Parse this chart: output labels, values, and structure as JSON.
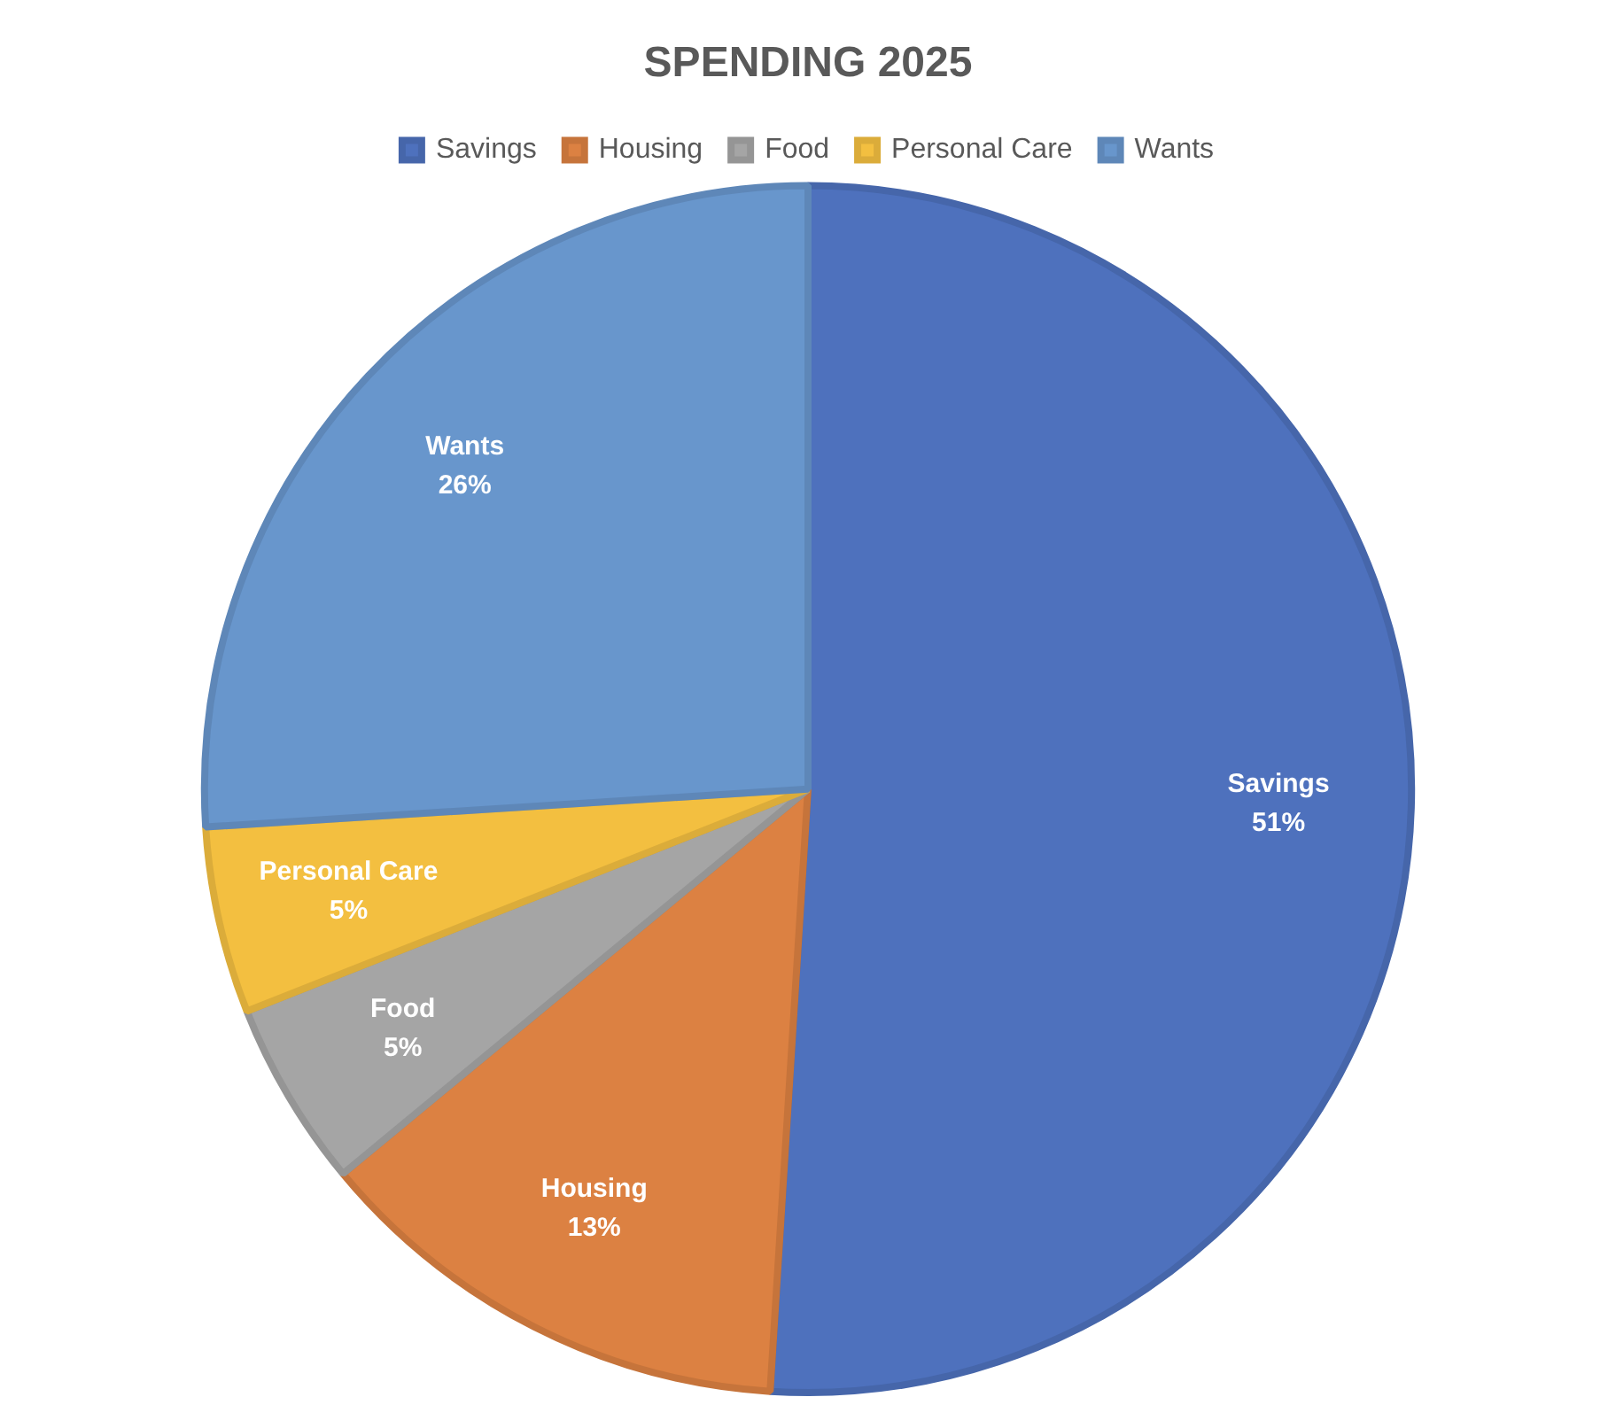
{
  "chart_data": {
    "type": "pie",
    "title": "SPENDING 2025",
    "categories": [
      "Savings",
      "Housing",
      "Food",
      "Personal Care",
      "Wants"
    ],
    "values": [
      51,
      13,
      5,
      5,
      26
    ],
    "value_labels": [
      "51%",
      "13%",
      "5%",
      "5%",
      "26%"
    ],
    "colors": [
      "#4e71bd",
      "#dc8142",
      "#a5a5a5",
      "#f3bf40",
      "#6896cc"
    ],
    "legend": "top"
  }
}
